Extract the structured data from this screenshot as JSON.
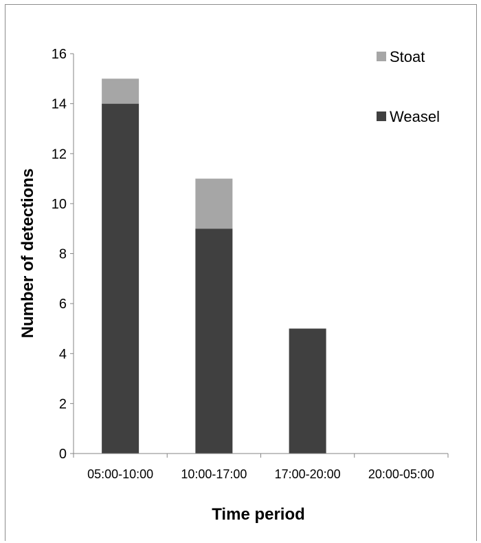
{
  "chart_data": {
    "type": "bar",
    "stacked": true,
    "categories": [
      "05:00-10:00",
      "10:00-17:00",
      "17:00-20:00",
      "20:00-05:00"
    ],
    "series": [
      {
        "name": "Weasel",
        "values": [
          14,
          9,
          5,
          0
        ],
        "color": "#404040"
      },
      {
        "name": "Stoat",
        "values": [
          1,
          2,
          0,
          0
        ],
        "color": "#a6a6a6"
      }
    ],
    "xlabel": "Time period",
    "ylabel": "Number of detections",
    "ylim": [
      0,
      16
    ],
    "yticks": [
      0,
      2,
      4,
      6,
      8,
      10,
      12,
      14,
      16
    ],
    "grid": false,
    "legend": {
      "placement": "top-right",
      "entries": [
        {
          "label": "Stoat",
          "color": "#a6a6a6"
        },
        {
          "label": "Weasel",
          "color": "#404040"
        }
      ]
    }
  }
}
